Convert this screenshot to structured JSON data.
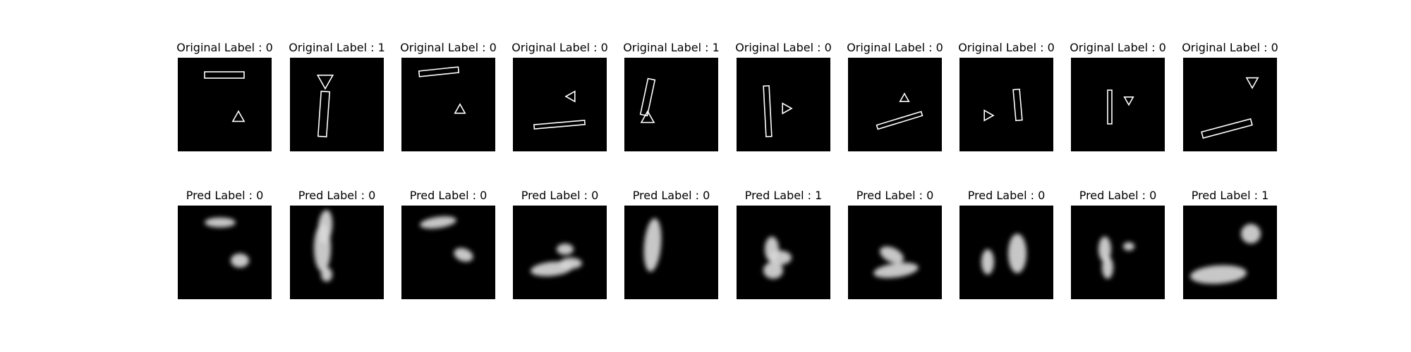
{
  "figure": {
    "rows": [
      {
        "kind": "original",
        "label_prefix": "Original Label : ",
        "panels": [
          {
            "label": "Original Label : 0",
            "value": 0,
            "shapes": [
              "bar",
              "triangle"
            ]
          },
          {
            "label": "Original Label : 1",
            "value": 1,
            "shapes": [
              "bar",
              "triangle"
            ]
          },
          {
            "label": "Original Label : 0",
            "value": 0,
            "shapes": [
              "bar",
              "triangle"
            ]
          },
          {
            "label": "Original Label : 0",
            "value": 0,
            "shapes": [
              "bar",
              "triangle"
            ]
          },
          {
            "label": "Original Label : 1",
            "value": 1,
            "shapes": [
              "bar",
              "triangle"
            ]
          },
          {
            "label": "Original Label : 0",
            "value": 0,
            "shapes": [
              "bar",
              "triangle"
            ]
          },
          {
            "label": "Original Label : 0",
            "value": 0,
            "shapes": [
              "bar",
              "triangle"
            ]
          },
          {
            "label": "Original Label : 0",
            "value": 0,
            "shapes": [
              "bar",
              "triangle"
            ]
          },
          {
            "label": "Original Label : 0",
            "value": 0,
            "shapes": [
              "bar",
              "triangle"
            ]
          },
          {
            "label": "Original Label : 0",
            "value": 0,
            "shapes": [
              "bar",
              "triangle"
            ]
          }
        ]
      },
      {
        "kind": "predicted",
        "label_prefix": "Pred Label : ",
        "panels": [
          {
            "label": "Pred Label : 0",
            "value": 0
          },
          {
            "label": "Pred Label : 0",
            "value": 0
          },
          {
            "label": "Pred Label : 0",
            "value": 0
          },
          {
            "label": "Pred Label : 0",
            "value": 0
          },
          {
            "label": "Pred Label : 0",
            "value": 0
          },
          {
            "label": "Pred Label : 1",
            "value": 1
          },
          {
            "label": "Pred Label : 0",
            "value": 0
          },
          {
            "label": "Pred Label : 0",
            "value": 0
          },
          {
            "label": "Pred Label : 0",
            "value": 0
          },
          {
            "label": "Pred Label : 1",
            "value": 1
          }
        ]
      }
    ],
    "colors": {
      "image_background": "#000000",
      "outline": "#ffffff",
      "blob": "#d8d8d8"
    }
  }
}
